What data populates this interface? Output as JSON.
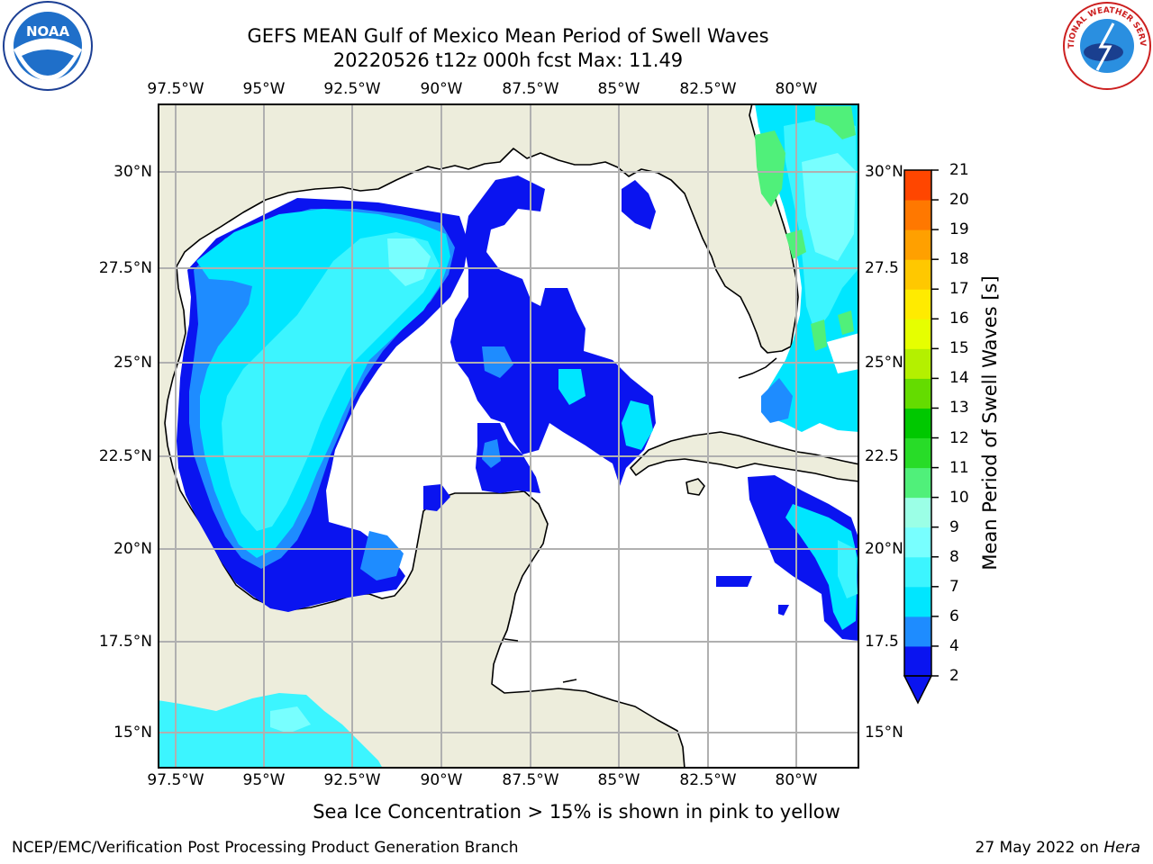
{
  "header": {
    "title_line1": "GEFS MEAN Gulf of Mexico Mean Period of Swell Waves",
    "title_line2": "20220526 t12z 000h fcst   Max: 11.49"
  },
  "map": {
    "lon_labels": [
      "97.5°W",
      "95°W",
      "92.5°W",
      "90°W",
      "87.5°W",
      "85°W",
      "82.5°W",
      "80°W"
    ],
    "lat_labels_left": [
      "30°N",
      "27.5°N",
      "25°N",
      "22.5°N",
      "20°N",
      "17.5°N",
      "15°N"
    ],
    "lat_labels_right": [
      "30°N",
      "27.5",
      "25°N",
      "22.5",
      "20°N",
      "17.5",
      "15°N"
    ],
    "colors": {
      "land": "#ededdc",
      "ocean_low": "#ffffff",
      "grid": "#b0b0b0"
    }
  },
  "colorbar": {
    "label": "Mean Period of Swell Waves [s]",
    "ticks": [
      "2",
      "4",
      "6",
      "7",
      "8",
      "9",
      "10",
      "11",
      "12",
      "13",
      "14",
      "15",
      "16",
      "17",
      "18",
      "19",
      "20",
      "21"
    ],
    "colors": [
      "#0a14f0",
      "#1e8cff",
      "#00e6ff",
      "#3cf5ff",
      "#78ffff",
      "#9bffe6",
      "#50f07a",
      "#28dc28",
      "#00c800",
      "#64dc00",
      "#b4f000",
      "#e6ff00",
      "#ffeb00",
      "#ffc800",
      "#ffa000",
      "#ff7800",
      "#ff4600",
      "#ff0000"
    ]
  },
  "note": "Sea Ice Concentration > 15% is shown in pink to yellow",
  "footer": {
    "left": "NCEP/EMC/Verification Post Processing Product Generation Branch",
    "date": "27 May 2022 on ",
    "host": "Hera"
  },
  "logos": {
    "left": "NOAA",
    "right": "NATIONAL WEATHER SERVICE"
  }
}
